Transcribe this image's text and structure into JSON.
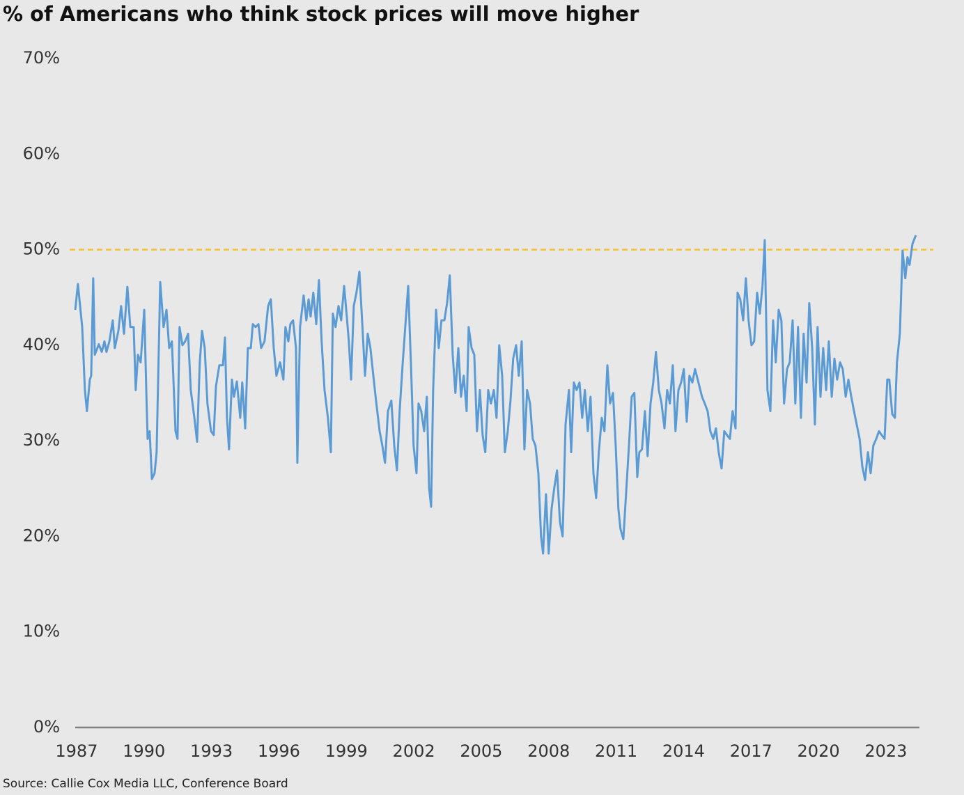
{
  "chart_data": {
    "type": "line",
    "title": "% of Americans who think stock prices will move higher",
    "source": "Source: Callie Cox Media LLC, Conference Board",
    "color": "#5b9bd5",
    "background": "#e8e8e8",
    "reference_line": {
      "value": 50,
      "color": "#f4c233",
      "style": "dashed"
    },
    "xlim": [
      1986.94,
      2024.49
    ],
    "xticks": [
      1987,
      1990,
      1993,
      1996,
      1999,
      2002,
      2005,
      2008,
      2011,
      2014,
      2017,
      2020,
      2023
    ],
    "ylim": [
      0,
      70
    ],
    "yticks": [
      {
        "value": 0,
        "label": "0%"
      },
      {
        "value": 10,
        "label": "10%"
      },
      {
        "value": 20,
        "label": "20%"
      },
      {
        "value": 30,
        "label": "30%"
      },
      {
        "value": 40,
        "label": "40%"
      },
      {
        "value": 50,
        "label": "50%"
      },
      {
        "value": 60,
        "label": "60%"
      },
      {
        "value": 70,
        "label": "70%"
      }
    ],
    "grid": false,
    "x": [
      1986.94,
      1987.06,
      1987.25,
      1987.37,
      1987.46,
      1987.59,
      1987.65,
      1987.74,
      1987.81,
      1987.99,
      1988.12,
      1988.24,
      1988.33,
      1988.46,
      1988.61,
      1988.7,
      1988.86,
      1988.98,
      1989.11,
      1989.26,
      1989.39,
      1989.54,
      1989.63,
      1989.73,
      1989.85,
      1990.01,
      1990.1,
      1990.16,
      1990.25,
      1990.35,
      1990.47,
      1990.56,
      1990.72,
      1990.87,
      1991.0,
      1991.12,
      1991.24,
      1991.4,
      1991.49,
      1991.58,
      1991.71,
      1991.83,
      1991.96,
      1992.08,
      1992.24,
      1992.36,
      1992.48,
      1992.58,
      1992.7,
      1992.82,
      1992.98,
      1993.1,
      1993.2,
      1993.35,
      1993.51,
      1993.6,
      1993.69,
      1993.78,
      1993.91,
      1994.0,
      1994.13,
      1994.28,
      1994.37,
      1994.5,
      1994.62,
      1994.75,
      1994.84,
      1994.96,
      1995.09,
      1995.21,
      1995.36,
      1995.52,
      1995.64,
      1995.77,
      1995.89,
      1996.05,
      1996.2,
      1996.29,
      1996.42,
      1996.51,
      1996.63,
      1996.76,
      1996.82,
      1996.94,
      1997.1,
      1997.22,
      1997.32,
      1997.41,
      1997.53,
      1997.66,
      1997.78,
      1997.9,
      1998.03,
      1998.18,
      1998.31,
      1998.4,
      1998.52,
      1998.65,
      1998.77,
      1998.9,
      1999.02,
      1999.11,
      1999.21,
      1999.33,
      1999.45,
      1999.58,
      1999.7,
      1999.83,
      1999.95,
      2000.07,
      2000.2,
      2000.32,
      2000.48,
      2000.6,
      2000.72,
      2000.85,
      2001.0,
      2001.13,
      2001.25,
      2001.37,
      2001.5,
      2001.62,
      2001.75,
      2001.87,
      2001.99,
      2002.12,
      2002.21,
      2002.33,
      2002.46,
      2002.58,
      2002.68,
      2002.77,
      2002.86,
      2002.99,
      2003.11,
      2003.23,
      2003.36,
      2003.48,
      2003.6,
      2003.73,
      2003.85,
      2003.98,
      2004.1,
      2004.22,
      2004.35,
      2004.44,
      2004.57,
      2004.69,
      2004.81,
      2004.94,
      2005.06,
      2005.18,
      2005.31,
      2005.43,
      2005.56,
      2005.68,
      2005.8,
      2005.93,
      2006.05,
      2006.18,
      2006.3,
      2006.42,
      2006.55,
      2006.67,
      2006.8,
      2006.92,
      2007.04,
      2007.17,
      2007.29,
      2007.41,
      2007.54,
      2007.66,
      2007.75,
      2007.88,
      2008.0,
      2008.13,
      2008.25,
      2008.37,
      2008.5,
      2008.62,
      2008.75,
      2008.9,
      2009.0,
      2009.12,
      2009.24,
      2009.37,
      2009.49,
      2009.61,
      2009.74,
      2009.86,
      2009.99,
      2010.11,
      2010.23,
      2010.36,
      2010.48,
      2010.61,
      2010.73,
      2010.86,
      2010.98,
      2011.1,
      2011.19,
      2011.32,
      2011.44,
      2011.57,
      2011.69,
      2011.81,
      2011.94,
      2012.03,
      2012.15,
      2012.28,
      2012.4,
      2012.53,
      2012.65,
      2012.77,
      2012.9,
      2013.02,
      2013.15,
      2013.27,
      2013.39,
      2013.52,
      2013.64,
      2013.77,
      2013.89,
      2014.01,
      2014.14,
      2014.26,
      2014.39,
      2014.51,
      2014.66,
      2014.82,
      2014.94,
      2015.07,
      2015.19,
      2015.32,
      2015.44,
      2015.56,
      2015.69,
      2015.81,
      2015.93,
      2016.06,
      2016.18,
      2016.31,
      2016.4,
      2016.52,
      2016.65,
      2016.77,
      2016.89,
      2017.02,
      2017.14,
      2017.27,
      2017.39,
      2017.51,
      2017.61,
      2017.73,
      2017.86,
      2017.98,
      2018.1,
      2018.23,
      2018.35,
      2018.47,
      2018.6,
      2018.72,
      2018.85,
      2018.97,
      2019.09,
      2019.22,
      2019.34,
      2019.47,
      2019.59,
      2019.72,
      2019.84,
      2019.96,
      2020.09,
      2020.21,
      2020.34,
      2020.46,
      2020.59,
      2020.71,
      2020.83,
      2020.96,
      2021.08,
      2021.21,
      2021.33,
      2021.46,
      2021.58,
      2021.7,
      2021.83,
      2021.95,
      2022.07,
      2022.2,
      2022.32,
      2022.44,
      2022.57,
      2022.69,
      2022.81,
      2022.94,
      2023.06,
      2023.15,
      2023.28,
      2023.4,
      2023.49,
      2023.62,
      2023.74,
      2023.86,
      2023.96,
      2024.05,
      2024.18,
      2024.33
    ],
    "values": [
      43.7,
      46.4,
      41.9,
      35.3,
      33.1,
      36.4,
      36.8,
      47.0,
      39.0,
      40.1,
      39.3,
      40.4,
      39.3,
      40.4,
      42.6,
      39.7,
      41.5,
      44.1,
      41.2,
      46.1,
      41.9,
      41.9,
      35.3,
      39.0,
      38.2,
      43.7,
      35.3,
      30.2,
      31.0,
      26.0,
      26.6,
      28.8,
      46.6,
      41.9,
      43.7,
      39.7,
      40.4,
      31.0,
      30.2,
      41.9,
      40.0,
      40.4,
      41.2,
      35.3,
      32.4,
      29.9,
      38.2,
      41.5,
      39.7,
      33.9,
      31.0,
      30.6,
      35.7,
      37.9,
      37.9,
      40.8,
      32.4,
      29.1,
      36.4,
      34.6,
      36.2,
      32.4,
      36.1,
      31.3,
      39.7,
      39.7,
      42.2,
      41.9,
      42.2,
      39.7,
      40.4,
      44.1,
      44.8,
      39.7,
      36.8,
      38.2,
      36.4,
      41.9,
      40.4,
      42.2,
      42.6,
      39.7,
      27.7,
      41.9,
      45.2,
      42.6,
      44.8,
      43.0,
      45.5,
      42.2,
      46.8,
      40.4,
      35.3,
      32.4,
      28.8,
      43.3,
      41.9,
      44.1,
      42.6,
      46.2,
      43.0,
      40.4,
      36.4,
      44.1,
      45.5,
      47.7,
      42.6,
      36.8,
      41.2,
      39.7,
      36.8,
      34.2,
      31.0,
      29.5,
      27.7,
      33.1,
      34.2,
      29.5,
      26.9,
      33.1,
      37.9,
      41.9,
      46.2,
      38.2,
      29.5,
      26.6,
      33.9,
      33.1,
      31.0,
      34.6,
      25.1,
      23.1,
      35.3,
      43.7,
      39.7,
      42.6,
      42.6,
      44.4,
      47.3,
      39.0,
      35.0,
      39.7,
      34.6,
      36.8,
      33.1,
      41.9,
      39.7,
      39.0,
      31.0,
      35.3,
      30.6,
      28.8,
      35.3,
      33.9,
      35.3,
      32.4,
      40.0,
      36.8,
      28.8,
      31.0,
      34.2,
      38.6,
      40.0,
      36.8,
      40.4,
      29.1,
      35.3,
      33.9,
      30.2,
      29.5,
      26.6,
      20.0,
      18.2,
      24.4,
      18.2,
      22.9,
      25.1,
      26.9,
      21.5,
      20.0,
      31.7,
      35.3,
      28.8,
      36.1,
      35.3,
      36.1,
      32.4,
      35.3,
      31.0,
      34.6,
      26.6,
      24.0,
      28.8,
      32.4,
      31.0,
      37.9,
      33.9,
      35.0,
      29.5,
      22.9,
      20.8,
      19.7,
      24.4,
      29.5,
      34.6,
      35.0,
      26.2,
      28.8,
      29.1,
      33.1,
      28.4,
      33.9,
      36.1,
      39.3,
      35.3,
      33.9,
      31.3,
      35.3,
      33.9,
      37.9,
      31.0,
      35.3,
      36.1,
      37.5,
      32.0,
      36.8,
      36.1,
      37.5,
      36.1,
      34.6,
      33.9,
      33.1,
      31.0,
      30.2,
      31.3,
      28.8,
      27.1,
      31.0,
      30.6,
      30.2,
      33.1,
      31.3,
      45.5,
      44.8,
      42.6,
      47.0,
      42.6,
      40.0,
      40.4,
      45.5,
      43.3,
      46.2,
      51.0,
      35.3,
      33.1,
      42.6,
      38.2,
      43.7,
      42.6,
      33.9,
      37.5,
      38.2,
      42.6,
      33.9,
      41.9,
      32.4,
      41.2,
      36.1,
      44.4,
      39.7,
      31.7,
      41.9,
      34.6,
      39.7,
      35.3,
      40.4,
      34.6,
      38.6,
      36.4,
      38.2,
      37.5,
      34.6,
      36.4,
      34.6,
      33.1,
      31.7,
      30.2,
      27.3,
      25.9,
      28.8,
      26.6,
      29.5,
      30.2,
      31.0,
      30.6,
      30.2,
      36.4,
      36.4,
      32.8,
      32.4,
      38.2,
      41.2,
      49.9,
      47.0,
      49.2,
      48.4,
      50.6,
      51.5
    ]
  }
}
